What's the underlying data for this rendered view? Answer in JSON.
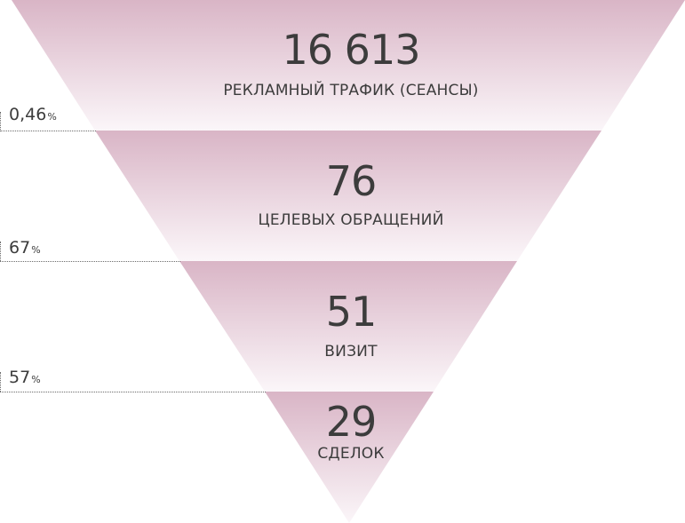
{
  "stages": [
    {
      "value": "16 613",
      "label": "РЕКЛАМНЫЙ ТРАФИК (СЕАНСЫ)"
    },
    {
      "value": "76",
      "label": "ЦЕЛЕВЫХ ОБРАЩЕНИЙ"
    },
    {
      "value": "51",
      "label": "ВИЗИТ"
    },
    {
      "value": "29",
      "label": "СДЕЛОК"
    }
  ],
  "conversions": [
    {
      "value": "0,46",
      "unit": "%"
    },
    {
      "value": "67",
      "unit": "%"
    },
    {
      "value": "57",
      "unit": "%"
    }
  ],
  "colors": {
    "band_top": "#d9b5c6",
    "band_bottom": "#fbf6f9",
    "text": "#3c3c3c"
  }
}
